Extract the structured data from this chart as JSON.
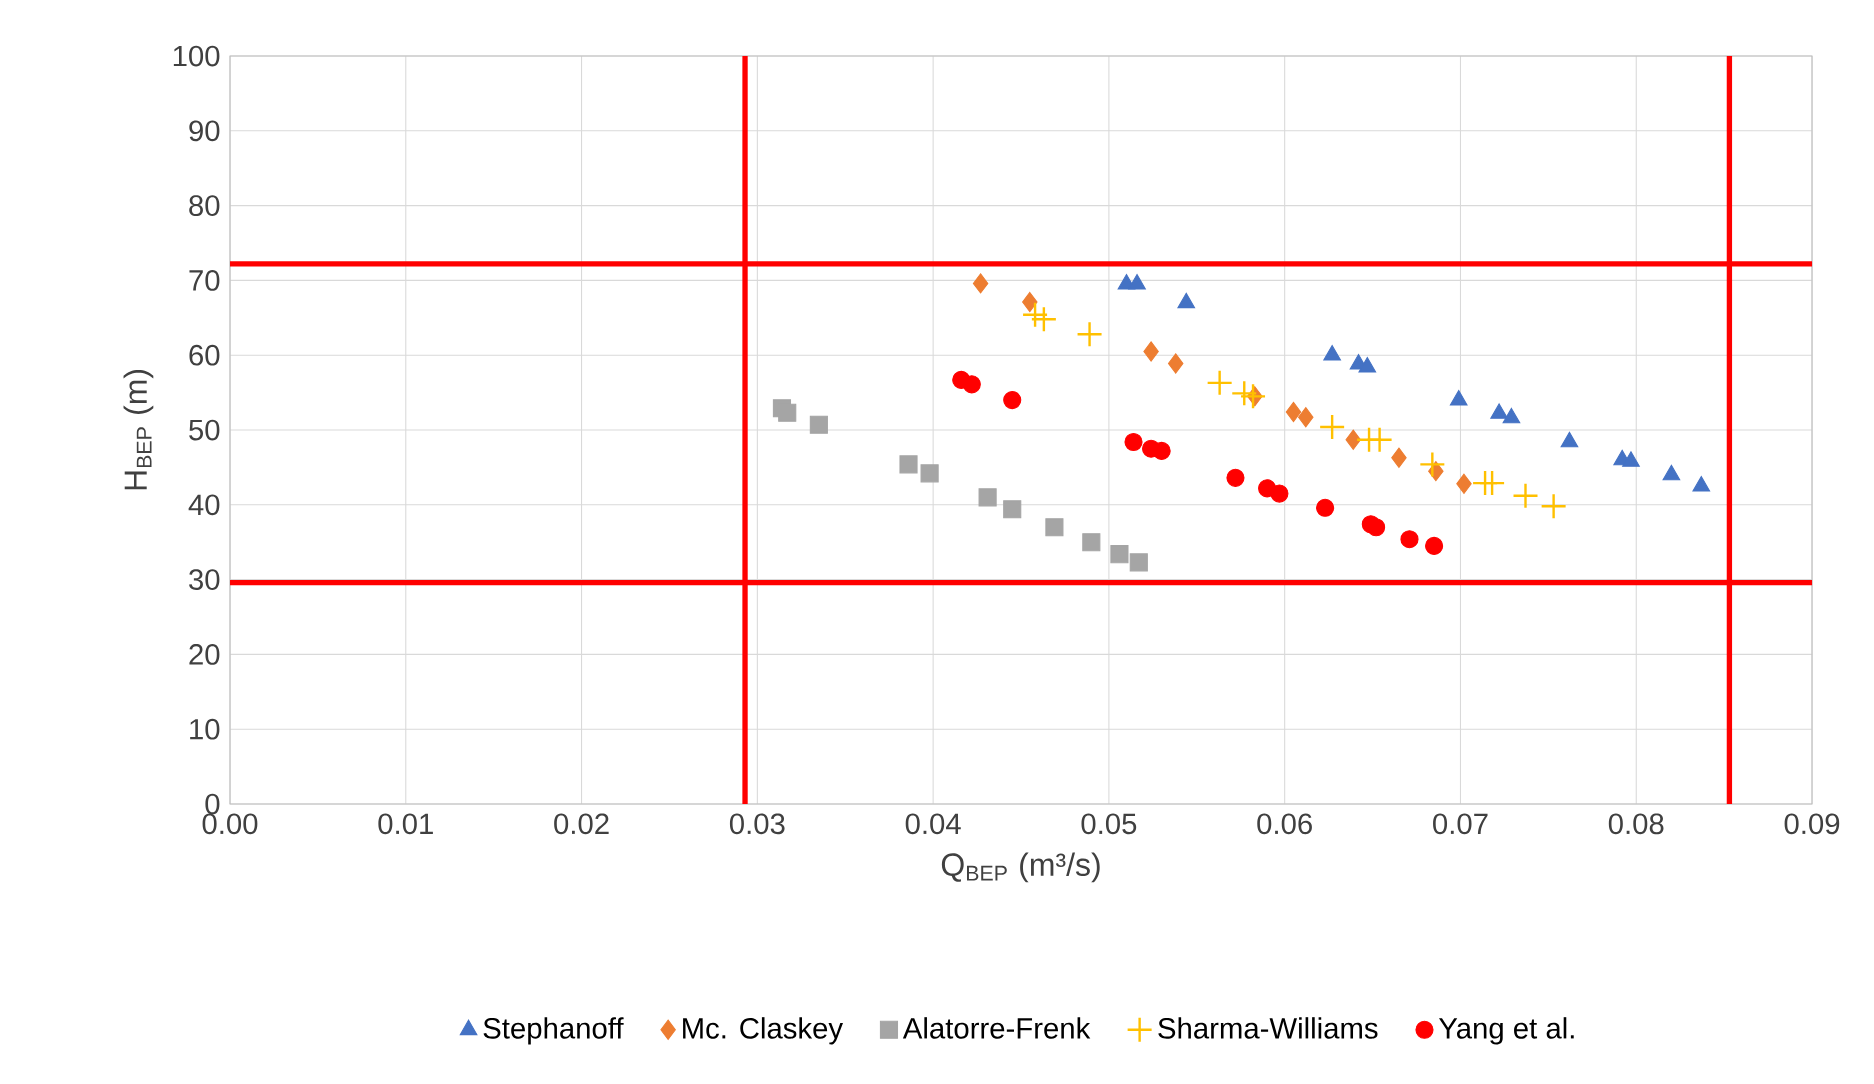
{
  "chart_data": {
    "type": "scatter",
    "xlabel": "Q$_{BEP}$ (m³/s)",
    "ylabel": "H$_{BEP}$ (m)",
    "xlim": [
      0,
      0.09
    ],
    "ylim": [
      0,
      100
    ],
    "xticks": [
      {
        "value": 0,
        "label": "0.00"
      },
      {
        "value": 0.01,
        "label": "0.01"
      },
      {
        "value": 0.02,
        "label": "0.02"
      },
      {
        "value": 0.03,
        "label": "0.03"
      },
      {
        "value": 0.04,
        "label": "0.04"
      },
      {
        "value": 0.05,
        "label": "0.05"
      },
      {
        "value": 0.06,
        "label": "0.06"
      },
      {
        "value": 0.07,
        "label": "0.07"
      },
      {
        "value": 0.08,
        "label": "0.08"
      },
      {
        "value": 0.09,
        "label": "0.09"
      }
    ],
    "yticks": [
      0,
      10,
      20,
      30,
      40,
      50,
      60,
      70,
      80,
      90,
      100
    ],
    "grid": true,
    "legend": "bottom",
    "series": [
      {
        "name": "Stephanoff",
        "color": "#4472c4",
        "marker": "triangle",
        "x": [
          0.051,
          0.0516,
          0.0544,
          0.0627,
          0.0642,
          0.0647,
          0.0699,
          0.0722,
          0.0729,
          0.0762,
          0.0792,
          0.0797,
          0.082,
          0.0837
        ],
        "values": [
          69.5,
          69.5,
          67,
          60,
          58.8,
          58.4,
          54,
          52.2,
          51.6,
          48.4,
          46,
          45.8,
          44,
          42.5
        ]
      },
      {
        "name": "Mc. Claskey",
        "color": "#ed7d31",
        "marker": "diamond",
        "x": [
          0.0427,
          0.0455,
          0.0524,
          0.0538,
          0.0583,
          0.0605,
          0.0612,
          0.0639,
          0.0665,
          0.0686,
          0.0702
        ],
        "values": [
          69.6,
          67.1,
          60.5,
          58.9,
          54.5,
          52.4,
          51.7,
          48.7,
          46.3,
          44.5,
          42.8
        ]
      },
      {
        "name": "Alatorre-Frenk",
        "color": "#a5a5a5",
        "marker": "square",
        "x": [
          0.0314,
          0.0317,
          0.0335,
          0.0386,
          0.0398,
          0.0431,
          0.0445,
          0.0469,
          0.049,
          0.0506,
          0.0517
        ],
        "values": [
          52.9,
          52.3,
          50.7,
          45.4,
          44.2,
          41,
          39.4,
          37,
          35,
          33.4,
          32.3
        ]
      },
      {
        "name": "Sharma-Williams",
        "color": "#ffc000",
        "marker": "cross",
        "x": [
          0.0458,
          0.0463,
          0.0489,
          0.0563,
          0.0577,
          0.0582,
          0.0627,
          0.0648,
          0.0654,
          0.0684,
          0.0714,
          0.0718,
          0.0737,
          0.0753
        ],
        "values": [
          65.4,
          64.8,
          62.8,
          56.3,
          54.9,
          54.5,
          50.4,
          48.7,
          48.7,
          45.4,
          42.9,
          42.9,
          41.2,
          39.8
        ]
      },
      {
        "name": "Yang et al.",
        "color": "#ff0000",
        "marker": "circle",
        "x": [
          0.0416,
          0.0422,
          0.0445,
          0.0514,
          0.0524,
          0.053,
          0.0572,
          0.059,
          0.0597,
          0.0623,
          0.0649,
          0.0652,
          0.0671,
          0.0685
        ],
        "values": [
          56.7,
          56.1,
          54,
          48.4,
          47.5,
          47.2,
          43.6,
          42.2,
          41.5,
          39.6,
          37.4,
          37,
          35.4,
          34.5
        ]
      }
    ],
    "ref_lines": [
      {
        "axis": "x",
        "value": 0.0293,
        "color": "#ff0000",
        "line_style": "solid"
      },
      {
        "axis": "x",
        "value": 0.0853,
        "color": "#ff0000",
        "line_style": "solid"
      },
      {
        "axis": "y",
        "value": 72.2,
        "color": "#ff0000",
        "line_style": "solid"
      },
      {
        "axis": "y",
        "value": 29.6,
        "color": "#ff0000",
        "line_style": "solid"
      }
    ]
  }
}
